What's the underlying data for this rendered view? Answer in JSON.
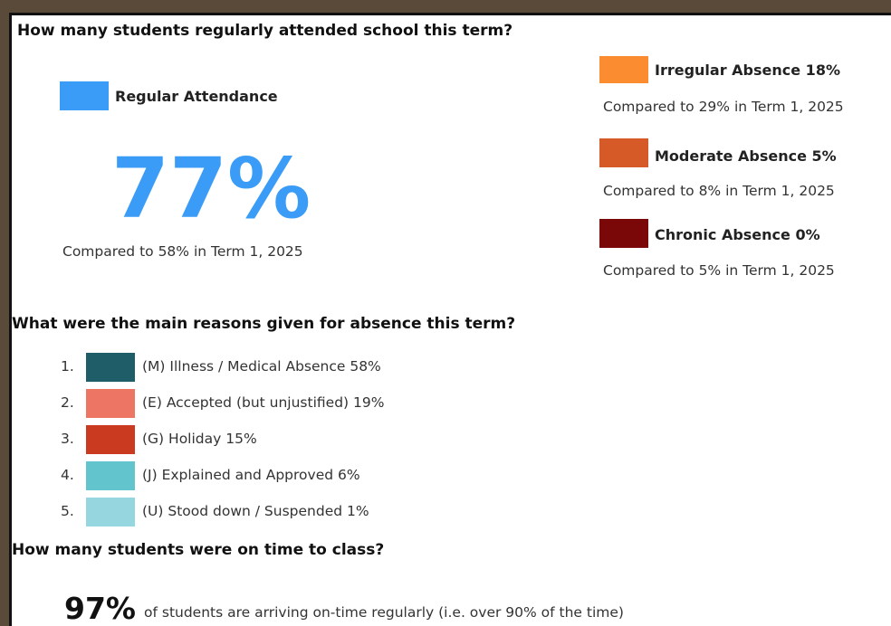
{
  "attendance": {
    "question": "How many students regularly attended school this term?",
    "regular": {
      "label": "Regular Attendance",
      "value": "77%",
      "comparison": "Compared to 58% in Term 1, 2025",
      "color": "#3a9cf7"
    },
    "categories": [
      {
        "label": "Irregular Absence 18%",
        "comparison": "Compared to 29% in Term 1, 2025",
        "color": "#fc8c30"
      },
      {
        "label": "Moderate Absence 5%",
        "comparison": "Compared to 8% in Term 1, 2025",
        "color": "#d65a28"
      },
      {
        "label": "Chronic Absence 0%",
        "comparison": "Compared to 5% in Term 1, 2025",
        "color": "#7a0808"
      }
    ]
  },
  "reasons": {
    "question": "What were the main reasons given for absence this term?",
    "items": [
      {
        "number": "1.",
        "label": "(M) Illness / Medical Absence 58%",
        "color": "#1f5e68"
      },
      {
        "number": "2.",
        "label": "(E) Accepted (but unjustified) 19%",
        "color": "#ec7563"
      },
      {
        "number": "3.",
        "label": "(G) Holiday 15%",
        "color": "#c93a21"
      },
      {
        "number": "4.",
        "label": "(J) Explained and Approved 6%",
        "color": "#62c4cc"
      },
      {
        "number": "5.",
        "label": "(U) Stood down / Suspended 1%",
        "color": "#96d7df"
      }
    ]
  },
  "punctuality": {
    "question": "How many students were on time to class?",
    "value": "97%",
    "text": "of students are arriving on-time regularly (i.e. over 90% of the time)"
  }
}
